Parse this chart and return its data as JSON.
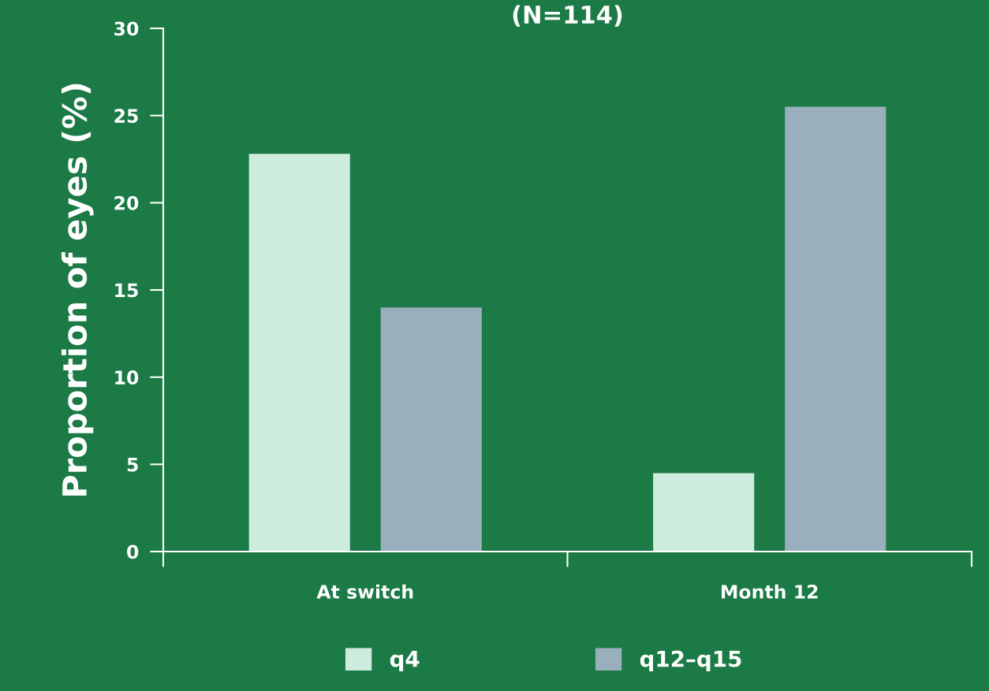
{
  "chart_data": {
    "type": "bar",
    "title": "(N=114)",
    "ylabel": "Proportion of eyes (%)",
    "categories": [
      "At switch",
      "Month 12"
    ],
    "series": [
      {
        "name": "q4",
        "color": "#cdecdd",
        "values": [
          22.8,
          4.5
        ]
      },
      {
        "name": "q12–q15",
        "color": "#9aafbd",
        "values": [
          14.0,
          25.5
        ]
      }
    ],
    "ylim": [
      0,
      30
    ],
    "yticks": [
      0,
      5,
      10,
      15,
      20,
      25,
      30
    ],
    "grid": false,
    "legend": "bottom"
  }
}
